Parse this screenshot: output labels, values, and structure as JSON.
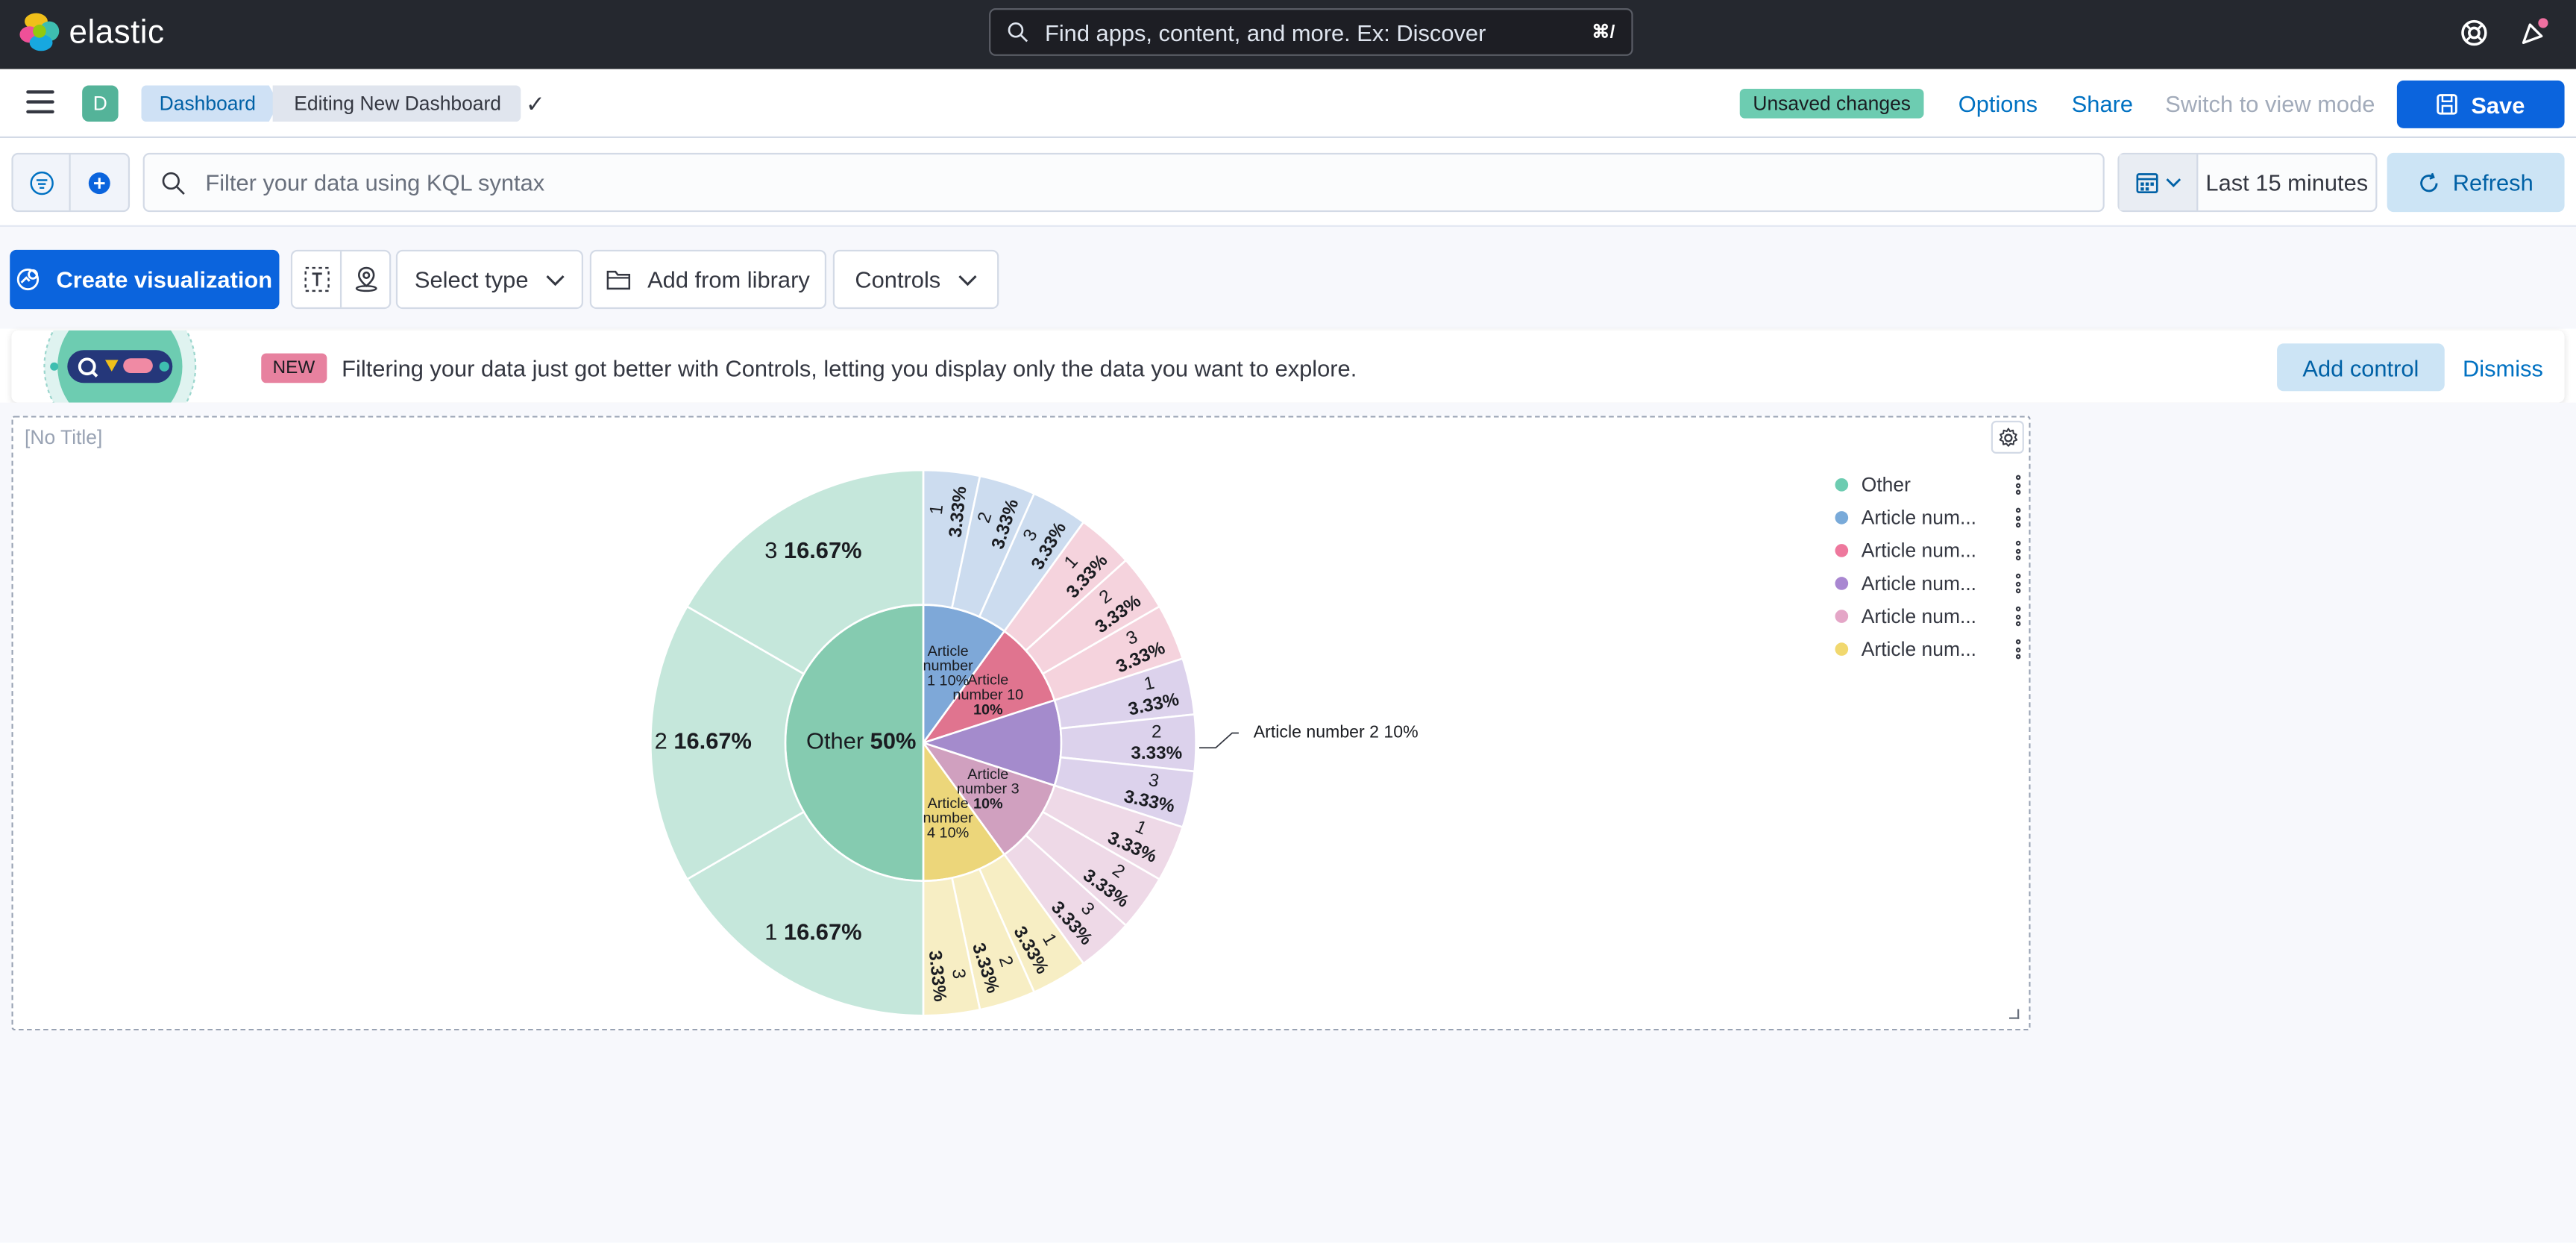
{
  "header": {
    "logo_text": "elastic",
    "search_placeholder": "Find apps, content, and more. Ex: Discover",
    "search_shortcut": "⌘/"
  },
  "navbar": {
    "avatar_letter": "D",
    "breadcrumbs": [
      "Dashboard",
      "Editing New Dashboard"
    ],
    "unsaved_badge": "Unsaved changes",
    "options": "Options",
    "share": "Share",
    "switch_mode": "Switch to view mode",
    "save": "Save"
  },
  "query": {
    "placeholder": "Filter your data using KQL syntax",
    "time_range": "Last 15 minutes",
    "refresh": "Refresh"
  },
  "toolbar": {
    "create_visualization": "Create visualization",
    "select_type": "Select type",
    "add_from_library": "Add from library",
    "controls": "Controls"
  },
  "callout": {
    "badge": "NEW",
    "text": "Filtering your data just got better with Controls, letting you display only the data you want to explore.",
    "add_control": "Add control",
    "dismiss": "Dismiss"
  },
  "panel": {
    "title": "[No Title]",
    "legend": [
      {
        "label": "Other",
        "color": "#6dccb1"
      },
      {
        "label": "Article num...",
        "color": "#79aad9"
      },
      {
        "label": "Article num...",
        "color": "#ee789d"
      },
      {
        "label": "Article num...",
        "color": "#a987d1"
      },
      {
        "label": "Article num...",
        "color": "#e4a6c7"
      },
      {
        "label": "Article num...",
        "color": "#f1d86f"
      }
    ]
  },
  "chart_data": {
    "type": "pie",
    "inner_ring": [
      {
        "label": "Other",
        "value": 50,
        "display": "Other 50%",
        "color": "#85cbb0"
      },
      {
        "label": "Article number 1",
        "value": 10,
        "display": "10%",
        "color": "#7ea8d8"
      },
      {
        "label": "Article number 10",
        "value": 10,
        "display": "10%",
        "color": "#e0748f"
      },
      {
        "label": "Article number 2",
        "value": 10,
        "display": "10%",
        "color": "#a48bcc"
      },
      {
        "label": "Article number 3",
        "value": 10,
        "display": "10%",
        "color": "#d0a0bf"
      },
      {
        "label": "Article number 4",
        "value": 10,
        "display": "10%",
        "color": "#ecd67a"
      }
    ],
    "outer_ring": [
      {
        "label": "3",
        "value": 16.67,
        "display": "16.67%",
        "parent": "Other"
      },
      {
        "label": "2",
        "value": 16.67,
        "display": "16.67%",
        "parent": "Other"
      },
      {
        "label": "1",
        "value": 16.67,
        "display": "16.67%",
        "parent": "Other"
      },
      {
        "label": "1",
        "value": 3.33,
        "display": "3.33%",
        "parent": "Article number 1"
      },
      {
        "label": "2",
        "value": 3.33,
        "display": "3.33%",
        "parent": "Article number 1"
      },
      {
        "label": "3",
        "value": 3.33,
        "display": "3.33%",
        "parent": "Article number 1"
      },
      {
        "label": "1",
        "value": 3.33,
        "display": "3.33%",
        "parent": "Article number 10"
      },
      {
        "label": "2",
        "value": 3.33,
        "display": "3.33%",
        "parent": "Article number 10"
      },
      {
        "label": "3",
        "value": 3.33,
        "display": "3.33%",
        "parent": "Article number 10"
      },
      {
        "label": "1",
        "value": 3.33,
        "display": "3.33%",
        "parent": "Article number 2"
      },
      {
        "label": "2",
        "value": 3.33,
        "display": "3.33%",
        "parent": "Article number 2"
      },
      {
        "label": "3",
        "value": 3.33,
        "display": "3.33%",
        "parent": "Article number 2"
      },
      {
        "label": "1",
        "value": 3.33,
        "display": "3.33%",
        "parent": "Article number 3"
      },
      {
        "label": "2",
        "value": 3.33,
        "display": "3.33%",
        "parent": "Article number 3"
      },
      {
        "label": "3",
        "value": 3.33,
        "display": "3.33%",
        "parent": "Article number 3"
      },
      {
        "label": "1",
        "value": 3.33,
        "display": "3.33%",
        "parent": "Article number 4"
      },
      {
        "label": "2",
        "value": 3.33,
        "display": "3.33%",
        "parent": "Article number 4"
      },
      {
        "label": "3",
        "value": 3.33,
        "display": "3.33%",
        "parent": "Article number 4"
      }
    ],
    "outer_colors": {
      "Other": "#c5e7db",
      "Article number 1": "#ccdcef",
      "Article number 10": "#f5d3dd",
      "Article number 2": "#dcd2ec",
      "Article number 3": "#eed9e7",
      "Article number 4": "#f7eec4"
    },
    "inner_labels": [
      {
        "lines": [
          "Article",
          "number",
          "1 10%"
        ]
      },
      {
        "lines": [
          "Article",
          "number 10",
          "10%"
        ]
      },
      {
        "lines": [
          "Article",
          "number 3",
          "10%"
        ]
      },
      {
        "lines": [
          "Article",
          "number",
          "4 10%"
        ]
      }
    ],
    "callout_label": "Article number 2  10%"
  }
}
